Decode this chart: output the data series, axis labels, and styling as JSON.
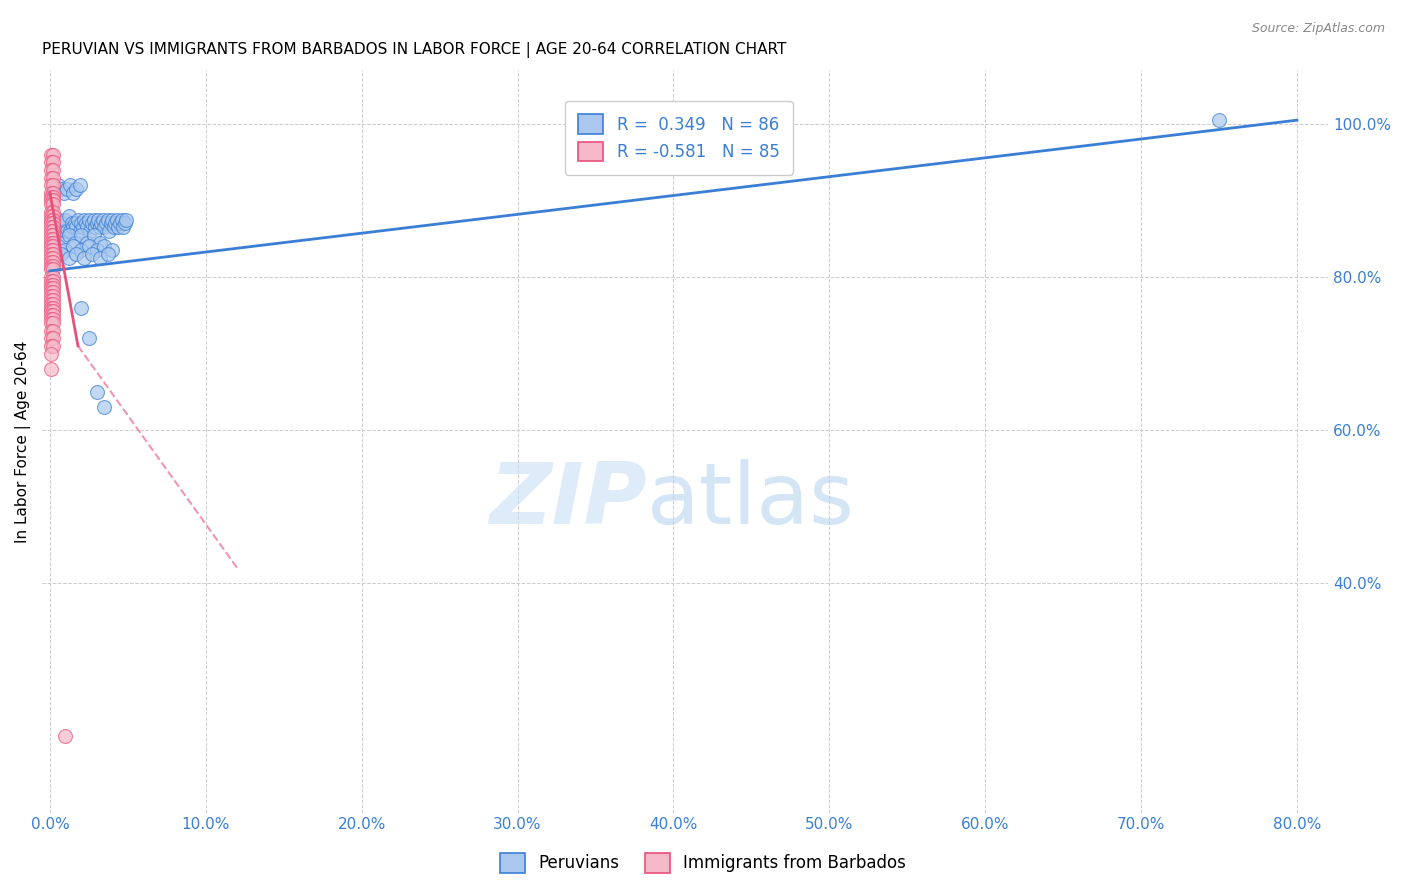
{
  "title": "PERUVIAN VS IMMIGRANTS FROM BARBADOS IN LABOR FORCE | AGE 20-64 CORRELATION CHART",
  "source": "Source: ZipAtlas.com",
  "ylabel": "In Labor Force | Age 20-64",
  "xlabel_ticks": [
    "0.0%",
    "10.0%",
    "20.0%",
    "30.0%",
    "40.0%",
    "50.0%",
    "60.0%",
    "70.0%",
    "80.0%"
  ],
  "ylabel_ticks_right": [
    "100.0%",
    "80.0%",
    "60.0%",
    "40.0%"
  ],
  "ytick_vals_right": [
    1.0,
    0.8,
    0.6,
    0.4
  ],
  "xlim": [
    -0.005,
    0.82
  ],
  "ylim": [
    0.1,
    1.07
  ],
  "R_blue": 0.349,
  "N_blue": 86,
  "R_pink": -0.581,
  "N_pink": 85,
  "legend_label_blue": "Peruvians",
  "legend_label_pink": "Immigrants from Barbados",
  "blue_color": "#aac8ee",
  "pink_color": "#f5b8c8",
  "blue_line_color": "#3a7fd5",
  "pink_line_color": "#e8507a",
  "blue_line": [
    [
      0.0,
      0.808
    ],
    [
      0.8,
      1.005
    ]
  ],
  "pink_line_solid": [
    [
      0.0,
      0.91
    ],
    [
      0.018,
      0.71
    ]
  ],
  "pink_line_dash": [
    [
      0.018,
      0.71
    ],
    [
      0.12,
      0.42
    ]
  ],
  "blue_scatter": [
    [
      0.002,
      0.875
    ],
    [
      0.003,
      0.865
    ],
    [
      0.004,
      0.87
    ],
    [
      0.005,
      0.865
    ],
    [
      0.006,
      0.875
    ],
    [
      0.007,
      0.87
    ],
    [
      0.008,
      0.87
    ],
    [
      0.009,
      0.86
    ],
    [
      0.01,
      0.875
    ],
    [
      0.011,
      0.86
    ],
    [
      0.012,
      0.88
    ],
    [
      0.013,
      0.86
    ],
    [
      0.014,
      0.87
    ],
    [
      0.015,
      0.865
    ],
    [
      0.016,
      0.87
    ],
    [
      0.017,
      0.865
    ],
    [
      0.018,
      0.875
    ],
    [
      0.019,
      0.86
    ],
    [
      0.02,
      0.87
    ],
    [
      0.021,
      0.865
    ],
    [
      0.022,
      0.875
    ],
    [
      0.023,
      0.87
    ],
    [
      0.024,
      0.865
    ],
    [
      0.025,
      0.875
    ],
    [
      0.026,
      0.86
    ],
    [
      0.027,
      0.87
    ],
    [
      0.028,
      0.875
    ],
    [
      0.029,
      0.865
    ],
    [
      0.03,
      0.87
    ],
    [
      0.031,
      0.875
    ],
    [
      0.032,
      0.865
    ],
    [
      0.033,
      0.87
    ],
    [
      0.034,
      0.875
    ],
    [
      0.035,
      0.865
    ],
    [
      0.036,
      0.87
    ],
    [
      0.037,
      0.875
    ],
    [
      0.038,
      0.86
    ],
    [
      0.039,
      0.87
    ],
    [
      0.04,
      0.875
    ],
    [
      0.041,
      0.865
    ],
    [
      0.042,
      0.87
    ],
    [
      0.043,
      0.875
    ],
    [
      0.044,
      0.865
    ],
    [
      0.045,
      0.87
    ],
    [
      0.046,
      0.875
    ],
    [
      0.047,
      0.865
    ],
    [
      0.048,
      0.87
    ],
    [
      0.049,
      0.875
    ],
    [
      0.005,
      0.92
    ],
    [
      0.007,
      0.915
    ],
    [
      0.009,
      0.91
    ],
    [
      0.011,
      0.915
    ],
    [
      0.013,
      0.92
    ],
    [
      0.015,
      0.91
    ],
    [
      0.017,
      0.915
    ],
    [
      0.019,
      0.92
    ],
    [
      0.003,
      0.855
    ],
    [
      0.008,
      0.845
    ],
    [
      0.012,
      0.855
    ],
    [
      0.016,
      0.845
    ],
    [
      0.02,
      0.855
    ],
    [
      0.024,
      0.845
    ],
    [
      0.028,
      0.855
    ],
    [
      0.032,
      0.845
    ],
    [
      0.005,
      0.84
    ],
    [
      0.01,
      0.835
    ],
    [
      0.015,
      0.84
    ],
    [
      0.02,
      0.835
    ],
    [
      0.025,
      0.84
    ],
    [
      0.03,
      0.835
    ],
    [
      0.035,
      0.84
    ],
    [
      0.04,
      0.835
    ],
    [
      0.007,
      0.83
    ],
    [
      0.012,
      0.825
    ],
    [
      0.017,
      0.83
    ],
    [
      0.022,
      0.825
    ],
    [
      0.027,
      0.83
    ],
    [
      0.032,
      0.825
    ],
    [
      0.037,
      0.83
    ],
    [
      0.02,
      0.76
    ],
    [
      0.025,
      0.72
    ],
    [
      0.03,
      0.65
    ],
    [
      0.035,
      0.63
    ],
    [
      0.75,
      1.005
    ]
  ],
  "pink_scatter": [
    [
      0.001,
      0.96
    ],
    [
      0.002,
      0.96
    ],
    [
      0.001,
      0.95
    ],
    [
      0.002,
      0.95
    ],
    [
      0.001,
      0.94
    ],
    [
      0.002,
      0.94
    ],
    [
      0.001,
      0.93
    ],
    [
      0.002,
      0.93
    ],
    [
      0.001,
      0.92
    ],
    [
      0.002,
      0.92
    ],
    [
      0.001,
      0.91
    ],
    [
      0.002,
      0.91
    ],
    [
      0.001,
      0.905
    ],
    [
      0.002,
      0.905
    ],
    [
      0.001,
      0.9
    ],
    [
      0.002,
      0.9
    ],
    [
      0.001,
      0.895
    ],
    [
      0.002,
      0.895
    ],
    [
      0.001,
      0.885
    ],
    [
      0.002,
      0.885
    ],
    [
      0.001,
      0.88
    ],
    [
      0.002,
      0.88
    ],
    [
      0.001,
      0.875
    ],
    [
      0.002,
      0.875
    ],
    [
      0.001,
      0.87
    ],
    [
      0.002,
      0.87
    ],
    [
      0.001,
      0.865
    ],
    [
      0.002,
      0.865
    ],
    [
      0.001,
      0.86
    ],
    [
      0.002,
      0.86
    ],
    [
      0.001,
      0.855
    ],
    [
      0.002,
      0.855
    ],
    [
      0.001,
      0.85
    ],
    [
      0.002,
      0.85
    ],
    [
      0.001,
      0.845
    ],
    [
      0.002,
      0.845
    ],
    [
      0.001,
      0.84
    ],
    [
      0.002,
      0.84
    ],
    [
      0.001,
      0.835
    ],
    [
      0.002,
      0.835
    ],
    [
      0.001,
      0.83
    ],
    [
      0.002,
      0.83
    ],
    [
      0.001,
      0.825
    ],
    [
      0.002,
      0.825
    ],
    [
      0.001,
      0.82
    ],
    [
      0.002,
      0.82
    ],
    [
      0.001,
      0.815
    ],
    [
      0.002,
      0.815
    ],
    [
      0.001,
      0.81
    ],
    [
      0.002,
      0.81
    ],
    [
      0.001,
      0.8
    ],
    [
      0.002,
      0.8
    ],
    [
      0.001,
      0.795
    ],
    [
      0.002,
      0.795
    ],
    [
      0.001,
      0.79
    ],
    [
      0.002,
      0.79
    ],
    [
      0.001,
      0.785
    ],
    [
      0.002,
      0.785
    ],
    [
      0.001,
      0.78
    ],
    [
      0.002,
      0.78
    ],
    [
      0.001,
      0.775
    ],
    [
      0.002,
      0.775
    ],
    [
      0.001,
      0.77
    ],
    [
      0.002,
      0.77
    ],
    [
      0.001,
      0.765
    ],
    [
      0.002,
      0.765
    ],
    [
      0.001,
      0.76
    ],
    [
      0.002,
      0.76
    ],
    [
      0.001,
      0.755
    ],
    [
      0.002,
      0.755
    ],
    [
      0.001,
      0.75
    ],
    [
      0.002,
      0.75
    ],
    [
      0.001,
      0.745
    ],
    [
      0.002,
      0.745
    ],
    [
      0.001,
      0.74
    ],
    [
      0.002,
      0.74
    ],
    [
      0.001,
      0.73
    ],
    [
      0.002,
      0.73
    ],
    [
      0.001,
      0.72
    ],
    [
      0.002,
      0.72
    ],
    [
      0.001,
      0.71
    ],
    [
      0.002,
      0.71
    ],
    [
      0.001,
      0.7
    ],
    [
      0.001,
      0.68
    ],
    [
      0.01,
      0.2
    ]
  ]
}
